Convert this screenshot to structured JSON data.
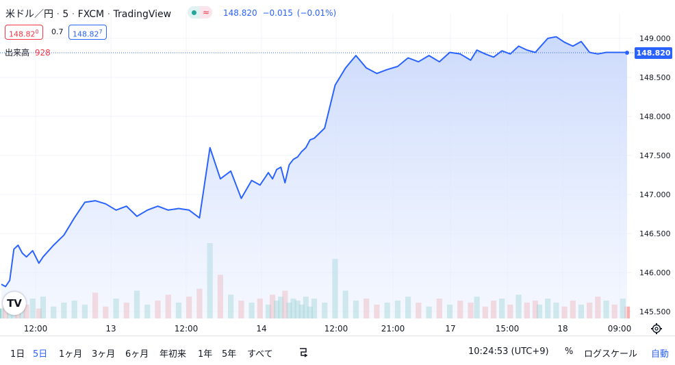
{
  "header": {
    "symbol": "米ドル／円",
    "sep1": "·",
    "interval": "5",
    "sep2": "·",
    "exchange": "FXCM",
    "sep3": "·",
    "source": "TradingView",
    "last_price": "148.820",
    "change": "−0.015",
    "change_pct": "(−0.01%)"
  },
  "quote": {
    "bid": "148.82",
    "bid_sup": "0",
    "spread": "0.7",
    "ask": "148.82",
    "ask_sup": "7"
  },
  "volume": {
    "label": "出来高",
    "value": "928"
  },
  "price_tag": "148.820",
  "logo_text": "TV",
  "bottom": {
    "ranges": [
      "1日",
      "5日",
      "1ヶ月",
      "3ヶ月",
      "6ヶ月",
      "年初来",
      "1年",
      "5年",
      "すべて"
    ],
    "active_range": "5日",
    "clock": "10:24:53 (UTC+9)",
    "percent": "%",
    "log_scale": "ログスケール",
    "auto": "自動"
  },
  "icons": [
    "gear-icon",
    "compare-icon",
    "visibility-icon"
  ],
  "colors": {
    "line": "#2962ff",
    "area_top": "#c9d8fb",
    "up_volume": "#26a69a",
    "down_volume": "#ef5350",
    "accent": "#2962ff",
    "negative": "#f23645"
  },
  "chart_data": {
    "type": "area",
    "y_ticks": [
      "149.000",
      "148.500",
      "148.000",
      "147.500",
      "147.000",
      "146.500",
      "146.000",
      "145.500"
    ],
    "ylim": [
      145.45,
      149.1
    ],
    "x_tick_labels": [
      "12:00",
      "13",
      "12:00",
      "14",
      "12:00",
      "21:00",
      "17",
      "15:00",
      "18",
      "09:00"
    ],
    "x": [
      0,
      2,
      4,
      6,
      8,
      10,
      12,
      15,
      18,
      20,
      25,
      30,
      35,
      40,
      45,
      50,
      55,
      60,
      65,
      70,
      75,
      80,
      85,
      90,
      95,
      100,
      105,
      110,
      115,
      120,
      124,
      128,
      130,
      132,
      134,
      136,
      138,
      140,
      142,
      144,
      146,
      148,
      150,
      155,
      160,
      165,
      170,
      175,
      180,
      185,
      190,
      195,
      200,
      205,
      210,
      215,
      220,
      225,
      228,
      232,
      236,
      240,
      244,
      248,
      252,
      256,
      258,
      262,
      266,
      270,
      274,
      278,
      282,
      286,
      290,
      294,
      298,
      300
    ],
    "values": [
      145.85,
      145.82,
      145.9,
      146.3,
      146.35,
      146.25,
      146.2,
      146.28,
      146.12,
      146.2,
      146.35,
      146.48,
      146.7,
      146.9,
      146.92,
      146.88,
      146.8,
      146.85,
      146.72,
      146.8,
      146.85,
      146.8,
      146.82,
      146.8,
      146.7,
      147.6,
      147.2,
      147.3,
      146.95,
      147.18,
      147.12,
      147.28,
      147.2,
      147.32,
      147.35,
      147.15,
      147.38,
      147.45,
      147.48,
      147.55,
      147.6,
      147.7,
      147.72,
      147.85,
      148.4,
      148.62,
      148.78,
      148.62,
      148.55,
      148.6,
      148.64,
      148.75,
      148.7,
      148.78,
      148.7,
      148.82,
      148.8,
      148.72,
      148.85,
      148.8,
      148.76,
      148.84,
      148.8,
      148.9,
      148.85,
      148.82,
      148.88,
      149.0,
      149.02,
      148.95,
      148.9,
      148.96,
      148.82,
      148.8,
      148.82,
      148.82,
      148.82,
      148.82
    ],
    "volume": [
      5,
      8,
      4,
      12,
      6,
      9,
      7,
      10,
      5,
      11,
      6,
      8,
      9,
      7,
      13,
      6,
      10,
      8,
      14,
      7,
      9,
      12,
      8,
      11,
      15,
      38,
      22,
      12,
      9,
      8,
      10,
      7,
      12,
      9,
      11,
      14,
      8,
      10,
      9,
      7,
      11,
      6,
      10,
      8,
      30,
      14,
      9,
      10,
      7,
      8,
      9,
      11,
      8,
      6,
      10,
      7,
      9,
      8,
      11,
      6,
      9,
      10,
      7,
      12,
      8,
      9,
      7,
      10,
      8,
      6,
      9,
      7,
      8,
      11,
      9,
      7,
      10,
      6
    ],
    "volume_dir": [
      1,
      0,
      1,
      1,
      0,
      1,
      0,
      1,
      0,
      1,
      1,
      1,
      1,
      1,
      0,
      0,
      1,
      0,
      1,
      1,
      0,
      0,
      1,
      0,
      0,
      1,
      0,
      1,
      0,
      1,
      0,
      1,
      0,
      1,
      1,
      0,
      1,
      1,
      1,
      1,
      1,
      1,
      1,
      1,
      1,
      1,
      1,
      0,
      0,
      1,
      1,
      1,
      0,
      1,
      0,
      1,
      0,
      0,
      1,
      0,
      0,
      1,
      0,
      1,
      0,
      0,
      1,
      1,
      1,
      0,
      0,
      1,
      0,
      0,
      1,
      0,
      1,
      0
    ],
    "last_value": 148.82,
    "grid": true
  }
}
